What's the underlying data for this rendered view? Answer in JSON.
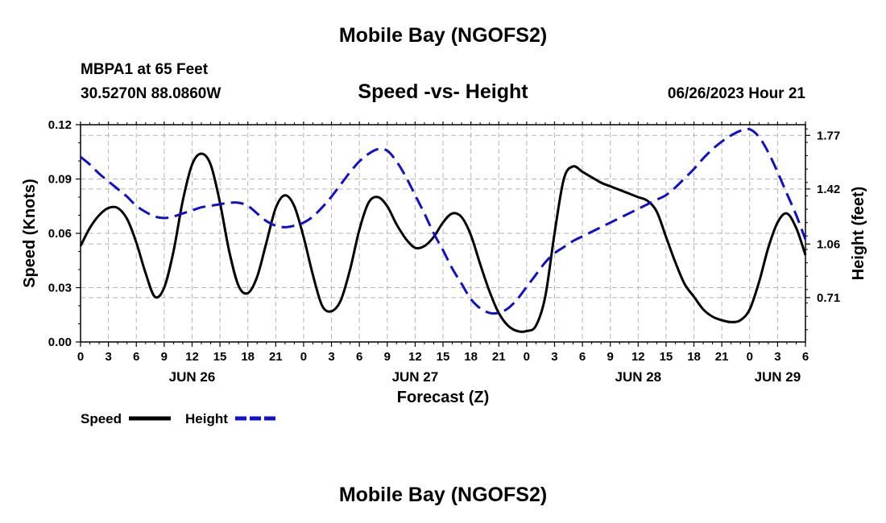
{
  "page": {
    "top_title": "Mobile Bay (NGOFS2)",
    "bottom_title": "Mobile Bay (NGOFS2)",
    "station": "MBPA1 at 65 Feet",
    "coords": "30.5270N  88.0860W",
    "chart_title": "Speed -vs- Height",
    "run_time": "06/26/2023 Hour 21"
  },
  "colors": {
    "speed": "#000000",
    "height": "#1010c8",
    "grid": "#b4b4b4"
  },
  "chart_data": {
    "type": "line",
    "title": "Speed -vs- Height",
    "xlabel": "Forecast (Z)",
    "ylabel_left": "Speed (Knots)",
    "ylabel_right": "Height (feet)",
    "x_range_hours": [
      0,
      78
    ],
    "x_tick_labels": [
      "0",
      "3",
      "6",
      "9",
      "12",
      "15",
      "18",
      "21",
      "0",
      "3",
      "6",
      "9",
      "12",
      "15",
      "18",
      "21",
      "0",
      "3",
      "6",
      "9",
      "12",
      "15",
      "18",
      "21",
      "0",
      "3",
      "6"
    ],
    "date_labels": [
      {
        "label": "JUN 26",
        "hour": 12
      },
      {
        "label": "JUN 27",
        "hour": 36
      },
      {
        "label": "JUN 28",
        "hour": 60
      },
      {
        "label": "JUN 29",
        "hour": 75
      }
    ],
    "y_left": {
      "range": [
        0,
        0.12
      ],
      "ticks": [
        "0.00",
        "0.03",
        "0.06",
        "0.09",
        "0.12"
      ]
    },
    "y_right": {
      "range": [
        0.42,
        1.84
      ],
      "ticks": [
        "0.71",
        "1.06",
        "1.42",
        "1.77"
      ]
    },
    "grid": true,
    "legend_position": "bottom-left",
    "series": [
      {
        "name": "Speed",
        "axis": "left",
        "style": "solid",
        "x": [
          0,
          1,
          2,
          3,
          4,
          5,
          6,
          7,
          8,
          9,
          10,
          11,
          12,
          13,
          14,
          15,
          16,
          17,
          18,
          19,
          20,
          21,
          22,
          23,
          24,
          25,
          26,
          27,
          28,
          29,
          30,
          31,
          32,
          33,
          34,
          35,
          36,
          37,
          38,
          39,
          40,
          41,
          42,
          43,
          44,
          45,
          46,
          47,
          48,
          49,
          50,
          51,
          52,
          53,
          54,
          55,
          56,
          57,
          58,
          59,
          60,
          61,
          62,
          63,
          64,
          65,
          66,
          67,
          68,
          69,
          70,
          71,
          72,
          73,
          74,
          75,
          76,
          77,
          78
        ],
        "values": [
          0.053,
          0.063,
          0.07,
          0.074,
          0.074,
          0.068,
          0.055,
          0.038,
          0.025,
          0.03,
          0.05,
          0.078,
          0.098,
          0.104,
          0.098,
          0.077,
          0.05,
          0.031,
          0.027,
          0.036,
          0.055,
          0.074,
          0.081,
          0.075,
          0.058,
          0.037,
          0.02,
          0.017,
          0.023,
          0.04,
          0.062,
          0.077,
          0.08,
          0.075,
          0.065,
          0.057,
          0.052,
          0.053,
          0.058,
          0.066,
          0.071,
          0.069,
          0.059,
          0.043,
          0.028,
          0.016,
          0.009,
          0.006,
          0.006,
          0.009,
          0.025,
          0.06,
          0.09,
          0.097,
          0.094,
          0.091,
          0.088,
          0.086,
          0.084,
          0.082,
          0.08,
          0.078,
          0.072,
          0.058,
          0.044,
          0.032,
          0.025,
          0.018,
          0.014,
          0.012,
          0.011,
          0.012,
          0.018,
          0.033,
          0.052,
          0.066,
          0.071,
          0.063,
          0.048
        ]
      },
      {
        "name": "Height",
        "axis": "right",
        "style": "dashed",
        "x": [
          0,
          1,
          2,
          3,
          4,
          5,
          6,
          7,
          8,
          9,
          10,
          11,
          12,
          13,
          14,
          15,
          16,
          17,
          18,
          19,
          20,
          21,
          22,
          23,
          24,
          25,
          26,
          27,
          28,
          29,
          30,
          31,
          32,
          33,
          34,
          35,
          36,
          37,
          38,
          39,
          40,
          41,
          42,
          43,
          44,
          45,
          46,
          47,
          48,
          49,
          50,
          51,
          52,
          53,
          54,
          55,
          56,
          57,
          58,
          59,
          60,
          61,
          62,
          63,
          64,
          65,
          66,
          67,
          68,
          69,
          70,
          71,
          72,
          73,
          74,
          75,
          76,
          77,
          78
        ],
        "values": [
          1.63,
          1.58,
          1.52,
          1.47,
          1.42,
          1.37,
          1.31,
          1.27,
          1.24,
          1.23,
          1.24,
          1.26,
          1.28,
          1.3,
          1.31,
          1.32,
          1.33,
          1.33,
          1.31,
          1.26,
          1.21,
          1.18,
          1.17,
          1.18,
          1.2,
          1.24,
          1.3,
          1.37,
          1.45,
          1.53,
          1.6,
          1.65,
          1.68,
          1.67,
          1.6,
          1.5,
          1.38,
          1.26,
          1.13,
          1.02,
          0.9,
          0.8,
          0.7,
          0.64,
          0.61,
          0.61,
          0.64,
          0.7,
          0.78,
          0.86,
          0.94,
          1.0,
          1.04,
          1.08,
          1.11,
          1.14,
          1.17,
          1.2,
          1.23,
          1.26,
          1.29,
          1.32,
          1.35,
          1.38,
          1.43,
          1.49,
          1.55,
          1.62,
          1.68,
          1.73,
          1.77,
          1.8,
          1.81,
          1.76,
          1.66,
          1.53,
          1.39,
          1.25,
          1.09
        ]
      }
    ],
    "legend": [
      {
        "label": "Speed",
        "style": "solid"
      },
      {
        "label": "Height",
        "style": "dashed"
      }
    ]
  }
}
